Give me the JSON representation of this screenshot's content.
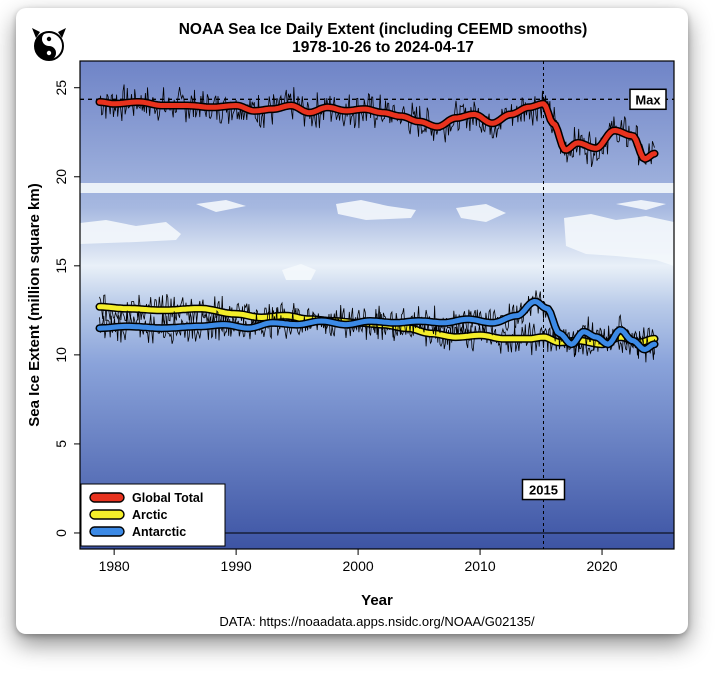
{
  "header": {
    "title_line1": "NOAA Sea Ice Daily Extent  (including CEEMD smooths)",
    "title_line2": "1978-10-26 to 2024-04-17"
  },
  "source_text": "DATA: https://noaadata.apps.nsidc.org/NOAA/G02135/",
  "colors": {
    "global": "#e8321e",
    "arctic": "#f4ee2a",
    "antarctic": "#3c8ae6",
    "raw": "#000000"
  },
  "chart_data": {
    "type": "line",
    "xlabel": "Year",
    "ylabel": "Sea Ice Extent (million square km)",
    "xlim": [
      1977.2,
      2025.9
    ],
    "ylim": [
      -0.9,
      26.5
    ],
    "x_ticks": [
      1980,
      1990,
      2000,
      2010,
      2020
    ],
    "y_ticks": [
      0,
      5,
      10,
      15,
      20,
      25
    ],
    "legend_position": "bottom-left",
    "reference_lines": {
      "max_value": 24.35,
      "max_label": "Max",
      "vertical_year": 2015.2,
      "vertical_label": "2015",
      "zero_line": 0
    },
    "series": [
      {
        "name": "Global Total",
        "color": "#e8321e",
        "x": [
          1978.8,
          1980,
          1982,
          1984,
          1986,
          1988,
          1990,
          1991.5,
          1993,
          1994.5,
          1996,
          1997.5,
          1999,
          2000.5,
          2002,
          2003.5,
          2005,
          2006.5,
          2008,
          2009.5,
          2011,
          2012.5,
          2014,
          2015.2,
          2016,
          2017,
          2018,
          2019.5,
          2021,
          2022.5,
          2023.5,
          2024.3
        ],
        "values": [
          24.2,
          24.1,
          24.2,
          24.0,
          24.0,
          23.9,
          24.0,
          23.7,
          23.8,
          24.0,
          23.6,
          23.9,
          23.7,
          23.8,
          23.6,
          23.4,
          23.1,
          22.8,
          23.3,
          23.5,
          23.0,
          23.5,
          23.9,
          24.1,
          23.0,
          21.5,
          21.9,
          21.6,
          22.6,
          22.3,
          21.0,
          21.3
        ]
      },
      {
        "name": "Arctic",
        "color": "#f4ee2a",
        "x": [
          1978.8,
          1981,
          1984,
          1987,
          1990,
          1992,
          1994,
          1996,
          1998,
          2000,
          2002,
          2004,
          2006,
          2008,
          2010,
          2012,
          2014,
          2015.2,
          2016.5,
          2018,
          2020,
          2021.5,
          2023,
          2024.3
        ],
        "values": [
          12.7,
          12.6,
          12.5,
          12.6,
          12.3,
          12.1,
          12.2,
          12.0,
          11.9,
          11.8,
          11.7,
          11.5,
          11.2,
          11.0,
          11.1,
          10.9,
          10.9,
          11.0,
          10.7,
          10.8,
          10.6,
          11.0,
          10.7,
          10.9
        ]
      },
      {
        "name": "Antarctic",
        "color": "#3c8ae6",
        "x": [
          1978.8,
          1981,
          1984,
          1987,
          1989,
          1991,
          1993,
          1995,
          1997,
          1999,
          2001,
          2003,
          2005,
          2007,
          2009,
          2011,
          2013,
          2014.5,
          2015.5,
          2016.5,
          2017.5,
          2018.5,
          2019.5,
          2020.5,
          2021.5,
          2022.5,
          2023.5,
          2024.3
        ],
        "values": [
          11.5,
          11.6,
          11.5,
          11.6,
          11.7,
          11.5,
          11.8,
          11.7,
          11.9,
          11.7,
          11.9,
          11.8,
          11.9,
          11.8,
          12.0,
          11.8,
          12.2,
          13.0,
          12.6,
          11.2,
          10.6,
          11.3,
          11.0,
          10.6,
          11.4,
          10.8,
          10.3,
          10.6
        ]
      }
    ]
  }
}
